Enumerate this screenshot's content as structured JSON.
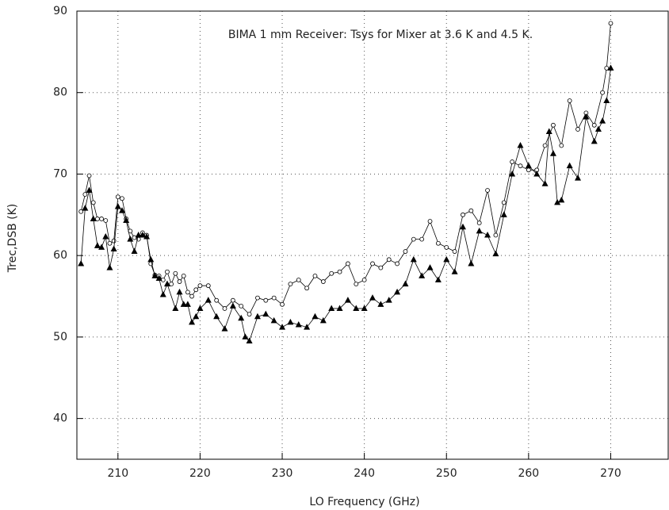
{
  "chart_data": {
    "type": "line",
    "title": "BIMA 1 mm Receiver: Tsys for Mixer at 3.6 K and 4.5 K.",
    "x_label": "LO Frequency (GHz)",
    "y_label": "Trec,DSB (K)",
    "xlim": [
      205,
      277
    ],
    "ylim": [
      35,
      90
    ],
    "xticks": [
      210,
      220,
      230,
      240,
      250,
      260,
      270
    ],
    "yticks": [
      40,
      50,
      60,
      70,
      80,
      90
    ],
    "grid": true,
    "series": [
      {
        "color": "#000000",
        "marker": "circle",
        "x": [
          205.5,
          206,
          206.5,
          207,
          207.5,
          208,
          208.5,
          209,
          209.5,
          210,
          210.5,
          211,
          211.5,
          212,
          212.5,
          213,
          213.5,
          214,
          214.5,
          215,
          215.5,
          216,
          216.5,
          217,
          217.5,
          218,
          218.5,
          219,
          219.5,
          220,
          221,
          222,
          223,
          224,
          225,
          226,
          227,
          228,
          229,
          230,
          231,
          232,
          233,
          234,
          235,
          236,
          237,
          238,
          239,
          240,
          241,
          242,
          243,
          244,
          245,
          246,
          247,
          248,
          249,
          250,
          251,
          252,
          253,
          254,
          255,
          256,
          257,
          258,
          259,
          260,
          261,
          262,
          263,
          264,
          265,
          266,
          267,
          268,
          269,
          269.5,
          270
        ],
        "values": [
          65.4,
          67.5,
          69.8,
          66.5,
          64.5,
          64.5,
          64.3,
          61.5,
          61.8,
          67.2,
          67.0,
          64.5,
          63.0,
          62.2,
          62.0,
          62.8,
          62.5,
          59.0,
          57.6,
          57.5,
          57.0,
          58.0,
          56.5,
          57.8,
          56.8,
          57.5,
          55.5,
          55.0,
          55.8,
          56.3,
          56.3,
          54.5,
          53.5,
          54.5,
          53.8,
          52.8,
          54.8,
          54.5,
          54.8,
          54.0,
          56.5,
          57.0,
          56.0,
          57.5,
          56.8,
          57.8,
          58.0,
          59.0,
          56.5,
          57.0,
          59.0,
          58.5,
          59.5,
          59.0,
          60.5,
          62.0,
          62.0,
          64.2,
          61.5,
          61.0,
          60.5,
          65.0,
          65.5,
          64.0,
          68.0,
          62.5,
          66.5,
          71.5,
          71.0,
          70.5,
          70.5,
          73.5,
          76.0,
          73.5,
          79.0,
          75.5,
          77.5,
          76.0,
          80.0,
          83.0,
          88.5
        ]
      },
      {
        "color": "#000000",
        "marker": "triangle",
        "x": [
          205.5,
          206,
          206.5,
          207,
          207.5,
          208,
          208.5,
          209,
          209.5,
          210,
          210.5,
          211,
          211.5,
          212,
          212.5,
          213,
          213.5,
          214,
          214.5,
          215,
          215.5,
          216,
          217,
          217.5,
          218,
          218.5,
          219,
          219.5,
          220,
          221,
          222,
          223,
          224,
          225,
          225.5,
          226,
          227,
          228,
          229,
          230,
          231,
          232,
          233,
          234,
          235,
          236,
          237,
          238,
          239,
          240,
          241,
          242,
          243,
          244,
          245,
          246,
          247,
          248,
          249,
          250,
          251,
          252,
          253,
          254,
          255,
          256,
          257,
          258,
          259,
          260,
          261,
          262,
          262.5,
          263,
          263.5,
          264,
          265,
          266,
          267,
          268,
          268.5,
          269,
          269.5,
          270
        ],
        "values": [
          59.0,
          65.8,
          68.0,
          64.5,
          61.2,
          61.0,
          62.3,
          58.5,
          60.8,
          66.0,
          65.5,
          64.3,
          62.0,
          60.5,
          62.5,
          62.5,
          62.3,
          59.5,
          57.5,
          57.2,
          55.2,
          56.5,
          53.5,
          55.5,
          54.0,
          54.0,
          51.8,
          52.5,
          53.5,
          54.5,
          52.5,
          51.0,
          53.8,
          52.3,
          50.0,
          49.5,
          52.5,
          52.8,
          52.0,
          51.2,
          51.8,
          51.5,
          51.2,
          52.5,
          52.0,
          53.5,
          53.5,
          54.5,
          53.5,
          53.5,
          54.8,
          54.0,
          54.5,
          55.5,
          56.5,
          59.5,
          57.5,
          58.5,
          57.0,
          59.5,
          58.0,
          63.5,
          59.0,
          63.0,
          62.5,
          60.2,
          65.0,
          70.0,
          73.5,
          71.0,
          70.0,
          68.8,
          75.2,
          72.5,
          66.5,
          66.8,
          71.0,
          69.5,
          77.0,
          74.0,
          75.5,
          76.5,
          79.0,
          83.0
        ]
      }
    ]
  }
}
